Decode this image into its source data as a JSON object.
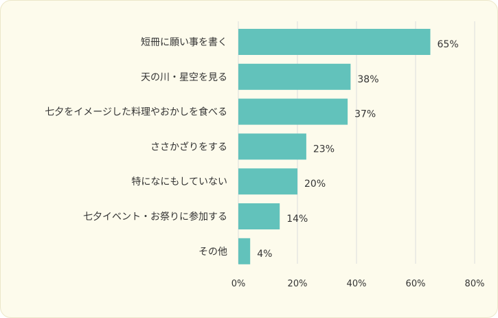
{
  "chart_data": {
    "type": "bar",
    "orientation": "horizontal",
    "categories": [
      "短冊に願い事を書く",
      "天の川・星空を見る",
      "七夕をイメージした料理やおかしを食べる",
      "ささかざりをする",
      "特になにもしていない",
      "七夕イベント・お祭りに参加する",
      "その他"
    ],
    "values": [
      65,
      38,
      37,
      23,
      20,
      14,
      4
    ],
    "value_labels": [
      "65%",
      "38%",
      "37%",
      "23%",
      "20%",
      "14%",
      "4%"
    ],
    "xlim": [
      0,
      80
    ],
    "xticks": [
      0,
      20,
      40,
      60,
      80
    ],
    "xtick_labels": [
      "0%",
      "20%",
      "40%",
      "60%",
      "80%"
    ],
    "grid": true,
    "bar_color": "#62c2bb",
    "grid_color": "#dcdcdc",
    "background_color": "#fdfbec"
  }
}
